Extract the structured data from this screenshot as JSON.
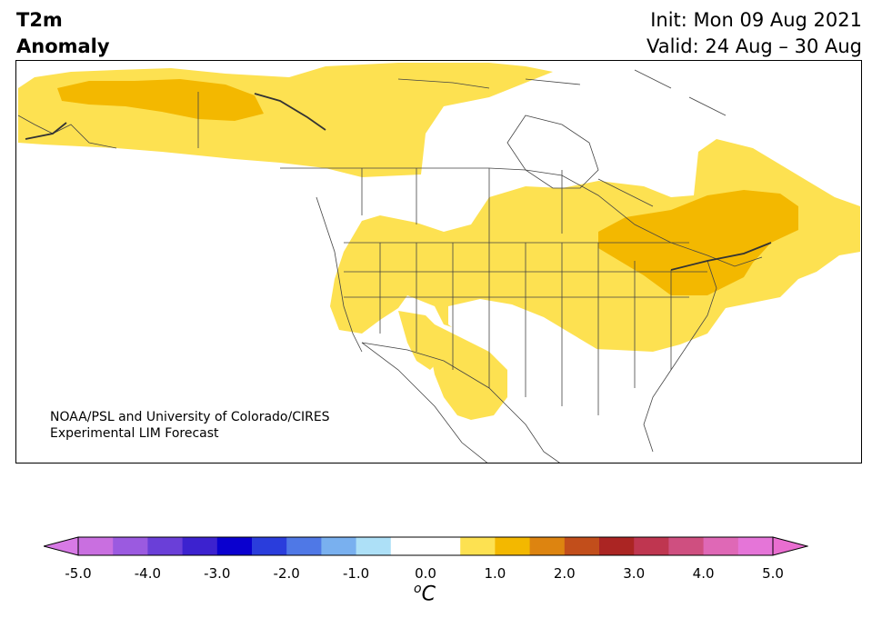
{
  "header": {
    "title_line1": "T2m",
    "title_line2": "Anomaly",
    "init_line": "Init: Mon 09 Aug 2021",
    "valid_line": "Valid: 24 Aug – 30 Aug"
  },
  "credit": {
    "line1": "NOAA/PSL and University of Colorado/CIRES",
    "line2": "Experimental LIM Forecast"
  },
  "colorbar": {
    "min": -5.0,
    "max": 5.0,
    "tick_labels": [
      "-5.0",
      "-4.0",
      "-3.0",
      "-2.0",
      "-1.0",
      "0.0",
      "1.0",
      "2.0",
      "3.0",
      "4.0",
      "5.0"
    ],
    "unit_o": "o",
    "unit_c": "C",
    "bin_colors": [
      "#c96fe0",
      "#9b5ae0",
      "#6a3fd8",
      "#3c22cf",
      "#0a00cf",
      "#2a3ddc",
      "#4f78e6",
      "#79b0ef",
      "#ade0f7",
      "#ffffff",
      "#ffffff",
      "#fde151",
      "#f3b800",
      "#dd8410",
      "#c24e1b",
      "#ab2523",
      "#bf3650",
      "#cf4f80",
      "#df68b6",
      "#e575d8"
    ],
    "extend_low_color": "#d87ae6",
    "extend_high_color": "#e96ed0"
  },
  "map": {
    "anomaly_colors": {
      "weak_warm": "#fde151",
      "moderate_warm": "#f3b800"
    }
  }
}
